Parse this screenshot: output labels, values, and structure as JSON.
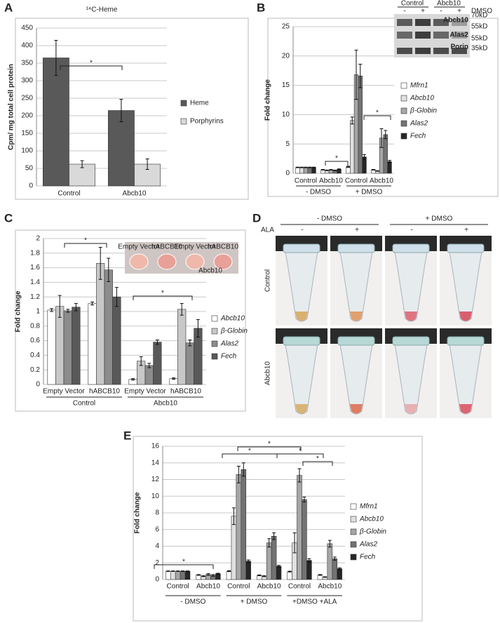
{
  "chart_data": [
    {
      "type": "bar",
      "label": "A",
      "title": "¹⁴C-Heme",
      "y_label": "Cpm/ mg total cell protein",
      "categories": [
        "Control",
        "Abcb10"
      ],
      "series": [
        {
          "name": "Heme",
          "color": "#595959",
          "values": [
            365,
            215
          ],
          "errors": [
            50,
            32
          ]
        },
        {
          "name": "Porphyrins",
          "color": "#d9d9d9",
          "values": [
            62,
            62
          ],
          "errors": [
            10,
            15
          ]
        }
      ],
      "ylim": [
        0,
        450
      ],
      "yticks": [
        0,
        50,
        100,
        150,
        200,
        250,
        300,
        350,
        400,
        450
      ],
      "grid": true,
      "legend": "right",
      "annotations": [
        "*"
      ]
    },
    {
      "type": "bar",
      "label": "B",
      "y_label": "Fold change",
      "categories": [
        "Control",
        "Abcb10",
        "Control",
        "Abcb10"
      ],
      "group_labels": [
        "- DMSO",
        "+ DMSO"
      ],
      "series": [
        {
          "name": "Mfrn1",
          "color": "#ffffff",
          "values": [
            1,
            0.6,
            1.1,
            0.6
          ],
          "errors": [
            0.05,
            0.05,
            0.1,
            0.05
          ]
        },
        {
          "name": "Abcb10",
          "color": "#e0e0e0",
          "values": [
            1,
            0.5,
            9,
            0.4
          ],
          "errors": [
            0.05,
            0.05,
            0.6,
            0.05
          ]
        },
        {
          "name": "β-Globin",
          "color": "#a6a6a6",
          "values": [
            1,
            0.6,
            16.8,
            6
          ],
          "errors": [
            0.05,
            0.05,
            4.2,
            1.6
          ]
        },
        {
          "name": "Alas2",
          "color": "#737373",
          "values": [
            1,
            0.5,
            16.6,
            6.6
          ],
          "errors": [
            0.05,
            0.05,
            2,
            0.7
          ]
        },
        {
          "name": "Fech",
          "color": "#262626",
          "values": [
            1,
            0.7,
            2.8,
            2
          ],
          "errors": [
            0.05,
            0.05,
            0.4,
            0.2
          ]
        }
      ],
      "ylim": [
        0,
        25
      ],
      "yticks": [
        0,
        5,
        10,
        15,
        20,
        25
      ],
      "grid": true,
      "legend": "right",
      "legend_italic": true,
      "annotations": [
        "*",
        "*"
      ],
      "blot": {
        "groups": [
          "Control",
          "Abcb10"
        ],
        "signs": [
          "-",
          "+",
          "-",
          "+"
        ],
        "treatment": "DMSO",
        "bands": [
          "Abcb10",
          "Alas2",
          "Porin"
        ],
        "markers": [
          "70kD",
          "55kD",
          "55kD",
          "35kD"
        ]
      }
    },
    {
      "type": "bar",
      "label": "C",
      "y_label": "Fold change",
      "categories": [
        "Empty Vector",
        "hABCB10",
        "Empty Vector",
        "hABCB10"
      ],
      "group_labels": [
        "Control",
        "Abcb10"
      ],
      "series": [
        {
          "name": "Abcb10",
          "color": "#ffffff",
          "values": [
            1.02,
            1.11,
            0.07,
            0.08
          ],
          "errors": [
            0.02,
            0.02,
            0.01,
            0.01
          ]
        },
        {
          "name": "β-Globin",
          "color": "#c8c8c8",
          "values": [
            1.07,
            1.66,
            0.32,
            1.03
          ],
          "errors": [
            0.15,
            0.22,
            0.06,
            0.08
          ]
        },
        {
          "name": "Alas2",
          "color": "#8c8c8c",
          "values": [
            1.01,
            1.57,
            0.26,
            0.57
          ],
          "errors": [
            0.02,
            0.16,
            0.03,
            0.04
          ]
        },
        {
          "name": "Fech",
          "color": "#595959",
          "values": [
            1.06,
            1.2,
            0.58,
            0.77
          ],
          "errors": [
            0.05,
            0.13,
            0.03,
            0.12
          ]
        }
      ],
      "ylim": [
        0,
        2
      ],
      "yticks": [
        0,
        0.2,
        0.4,
        0.6,
        0.8,
        1,
        1.2,
        1.4,
        1.6,
        1.8,
        2
      ],
      "grid": true,
      "legend": "right",
      "legend_italic": true,
      "annotations": [
        "*",
        "*"
      ],
      "inset": {
        "labels": [
          "Empty Vector",
          "hABCB10",
          "Empty Vector",
          "hABCB10"
        ],
        "group": "Abcb10"
      }
    },
    {
      "type": "bar",
      "label": "E",
      "y_label": "Fold change",
      "categories": [
        "Control",
        "Abcb10",
        "Control",
        "Abcb10",
        "Control",
        "Abcb10"
      ],
      "group_labels": [
        "- DMSO",
        "+ DMSO",
        "+DMSO +ALA"
      ],
      "series": [
        {
          "name": "Mfrn1",
          "color": "#ffffff",
          "values": [
            1,
            0.55,
            1,
            0.5,
            0.95,
            0.55
          ],
          "errors": [
            0.03,
            0.05,
            0.05,
            0.05,
            0.05,
            0.05
          ]
        },
        {
          "name": "Abcb10",
          "color": "#e0e0e0",
          "values": [
            1,
            0.4,
            7.6,
            0.4,
            4.4,
            0.3
          ],
          "errors": [
            0.03,
            0.05,
            1,
            0.05,
            1.2,
            0.03
          ]
        },
        {
          "name": "β-Globin",
          "color": "#a6a6a6",
          "values": [
            1,
            0.6,
            12.6,
            4.4,
            12.5,
            4.3
          ],
          "errors": [
            0.03,
            0.1,
            1,
            0.5,
            0.8,
            0.4
          ]
        },
        {
          "name": "Alas2",
          "color": "#737373",
          "values": [
            1,
            0.5,
            13.2,
            5.2,
            9.6,
            2.5
          ],
          "errors": [
            0.03,
            0.1,
            0.8,
            0.4,
            0.3,
            0.2
          ]
        },
        {
          "name": "Fech",
          "color": "#262626",
          "values": [
            1,
            0.7,
            2.2,
            1.6,
            2.3,
            1.3
          ],
          "errors": [
            0.03,
            0.05,
            0.15,
            0.1,
            0.2,
            0.1
          ]
        }
      ],
      "ylim": [
        0,
        16
      ],
      "yticks": [
        0,
        2,
        4,
        6,
        8,
        10,
        12,
        14,
        16
      ],
      "grid": true,
      "legend": "right",
      "legend_italic": true,
      "annotations": [
        "*",
        "*",
        "*",
        "*",
        "*"
      ]
    }
  ],
  "photo_panel": {
    "label": "D",
    "groups": [
      "- DMSO",
      "+ DMSO"
    ],
    "treatment_label": "ALA",
    "treatment_signs": [
      "-",
      "+",
      "-",
      "+"
    ],
    "rows": [
      "Control",
      "Abcb10"
    ]
  }
}
